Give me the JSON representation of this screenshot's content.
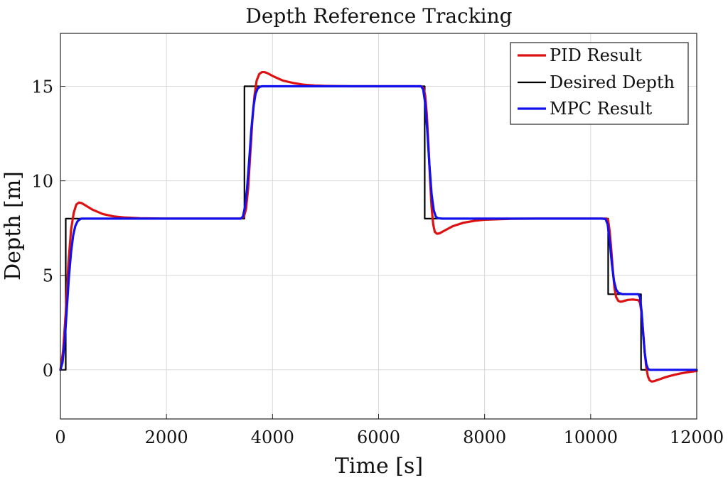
{
  "chart_data": {
    "type": "line",
    "title": "Depth Reference Tracking",
    "xlabel": "Time [s]",
    "ylabel": "Depth [m]",
    "xlim": [
      0,
      12000
    ],
    "ylim": [
      -2.6,
      17.8
    ],
    "xticks": [
      0,
      2000,
      4000,
      6000,
      8000,
      10000,
      12000
    ],
    "yticks": [
      0,
      5,
      10,
      15
    ],
    "grid": true,
    "legend_position": "top-right",
    "series": [
      {
        "name": "PID Result",
        "color": "#dd1111",
        "line_width": "thick",
        "x": [
          0,
          50,
          100,
          150,
          200,
          250,
          300,
          350,
          400,
          500,
          600,
          800,
          1000,
          1200,
          1500,
          2000,
          2500,
          3000,
          3400,
          3460,
          3500,
          3540,
          3580,
          3620,
          3660,
          3700,
          3750,
          3800,
          3850,
          3900,
          4000,
          4100,
          4200,
          4400,
          4600,
          4800,
          5000,
          5500,
          6000,
          6500,
          6800,
          6850,
          6880,
          6910,
          6940,
          6970,
          7000,
          7030,
          7060,
          7100,
          7150,
          7200,
          7300,
          7400,
          7600,
          7800,
          8000,
          8500,
          9000,
          9500,
          10000,
          10300,
          10330,
          10360,
          10390,
          10420,
          10450,
          10480,
          10520,
          10560,
          10600,
          10700,
          10800,
          10900,
          10930,
          10960,
          10990,
          11020,
          11050,
          11080,
          11110,
          11150,
          11200,
          11250,
          11300,
          11400,
          11500,
          11600,
          11700,
          11800,
          11900,
          12000
        ],
        "y": [
          0,
          1.0,
          3.0,
          5.6,
          7.4,
          8.3,
          8.75,
          8.85,
          8.82,
          8.65,
          8.48,
          8.24,
          8.12,
          8.06,
          8.02,
          8.0,
          8.0,
          8.0,
          8.0,
          8.1,
          8.5,
          9.6,
          11.4,
          13.2,
          14.5,
          15.3,
          15.65,
          15.75,
          15.75,
          15.7,
          15.55,
          15.42,
          15.3,
          15.17,
          15.08,
          15.04,
          15.02,
          15.0,
          15.0,
          15.0,
          15.0,
          14.9,
          14.5,
          13.5,
          11.9,
          10.1,
          8.6,
          7.7,
          7.3,
          7.2,
          7.22,
          7.3,
          7.45,
          7.6,
          7.78,
          7.88,
          7.94,
          7.99,
          8.0,
          8.0,
          8.0,
          8.0,
          7.9,
          7.3,
          6.3,
          5.2,
          4.3,
          3.85,
          3.65,
          3.6,
          3.62,
          3.7,
          3.72,
          3.68,
          3.55,
          3.0,
          2.0,
          0.9,
          0.1,
          -0.35,
          -0.55,
          -0.62,
          -0.6,
          -0.55,
          -0.5,
          -0.4,
          -0.32,
          -0.25,
          -0.19,
          -0.14,
          -0.1,
          -0.06
        ]
      },
      {
        "name": "Desired Depth",
        "color": "#000000",
        "line_width": "thin",
        "x": [
          0,
          100,
          100,
          3470,
          3470,
          6870,
          6870,
          10330,
          10330,
          10950,
          10950,
          12000
        ],
        "y": [
          0,
          0,
          8,
          8,
          15,
          15,
          8,
          8,
          4,
          4,
          0,
          0
        ]
      },
      {
        "name": "MPC Result",
        "color": "#1111ee",
        "line_width": "thick",
        "x": [
          0,
          40,
          80,
          120,
          160,
          200,
          240,
          280,
          320,
          360,
          400,
          500,
          1000,
          2000,
          3000,
          3400,
          3440,
          3480,
          3520,
          3560,
          3600,
          3640,
          3680,
          3720,
          3760,
          3800,
          3900,
          4500,
          6000,
          6800,
          6840,
          6880,
          6920,
          6960,
          7000,
          7040,
          7080,
          7120,
          7200,
          8000,
          9000,
          10200,
          10280,
          10320,
          10360,
          10400,
          10440,
          10480,
          10520,
          10600,
          10800,
          10900,
          10930,
          10960,
          10990,
          11020,
          11050,
          11080,
          11110,
          11150,
          11200,
          11500,
          12000
        ],
        "y": [
          0,
          0.4,
          1.5,
          3.2,
          4.9,
          6.2,
          7.1,
          7.6,
          7.85,
          7.95,
          8.0,
          8.0,
          8.0,
          8.0,
          8.0,
          8.0,
          8.1,
          8.6,
          9.6,
          11.1,
          12.7,
          13.9,
          14.6,
          14.88,
          14.97,
          15.0,
          15.0,
          15.0,
          15.0,
          15.0,
          14.85,
          14.1,
          12.6,
          10.8,
          9.3,
          8.45,
          8.1,
          8.02,
          8.0,
          8.0,
          8.0,
          8.0,
          7.98,
          7.7,
          6.8,
          5.6,
          4.7,
          4.25,
          4.08,
          4.0,
          4.0,
          4.0,
          3.85,
          3.1,
          1.9,
          0.9,
          0.3,
          0.06,
          0.0,
          0.0,
          0.0,
          0.0,
          0.0
        ]
      }
    ]
  }
}
